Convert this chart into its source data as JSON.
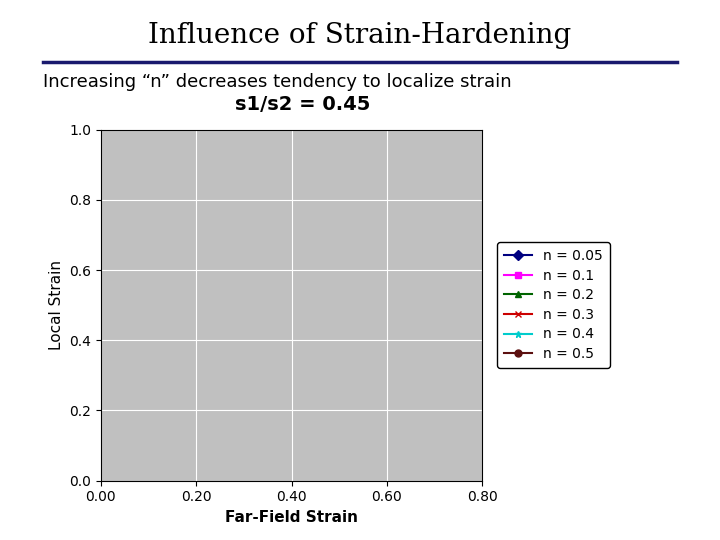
{
  "title": "Influence of Strain-Hardening",
  "subtitle": "Increasing “n” decreases tendency to localize strain",
  "eq_label": "s1/s2 = 0.45",
  "xlabel": "Far-Field Strain",
  "ylabel": "Local Strain",
  "xlim": [
    0.0,
    0.8
  ],
  "ylim": [
    0.0,
    1.0
  ],
  "xticks": [
    0.0,
    0.2,
    0.4,
    0.6,
    0.8
  ],
  "yticks": [
    0.0,
    0.2,
    0.4,
    0.6,
    0.8,
    1.0
  ],
  "background_color": "#c0c0c0",
  "series": [
    {
      "n": 0.05,
      "color": "#000080",
      "marker": "D",
      "linestyle": "-",
      "markersize": 4
    },
    {
      "n": 0.1,
      "color": "#ff00ff",
      "marker": "s",
      "linestyle": "-",
      "markersize": 4
    },
    {
      "n": 0.2,
      "color": "#006400",
      "marker": "^",
      "linestyle": "-",
      "markersize": 5
    },
    {
      "n": 0.3,
      "color": "#cc0000",
      "marker": "x",
      "linestyle": "-",
      "markersize": 6
    },
    {
      "n": 0.4,
      "color": "#00cccc",
      "marker": "*",
      "linestyle": "-",
      "markersize": 5
    },
    {
      "n": 0.5,
      "color": "#5c1010",
      "marker": "o",
      "linestyle": "-",
      "markersize": 4
    }
  ],
  "s1_s2": 0.45,
  "title_fontsize": 20,
  "subtitle_fontsize": 13,
  "eq_fontsize": 14,
  "axis_label_fontsize": 11,
  "tick_fontsize": 10,
  "legend_fontsize": 10,
  "title_color": "#000000",
  "title_font": "serif",
  "n_markers": 20,
  "linewidth": 1.3
}
